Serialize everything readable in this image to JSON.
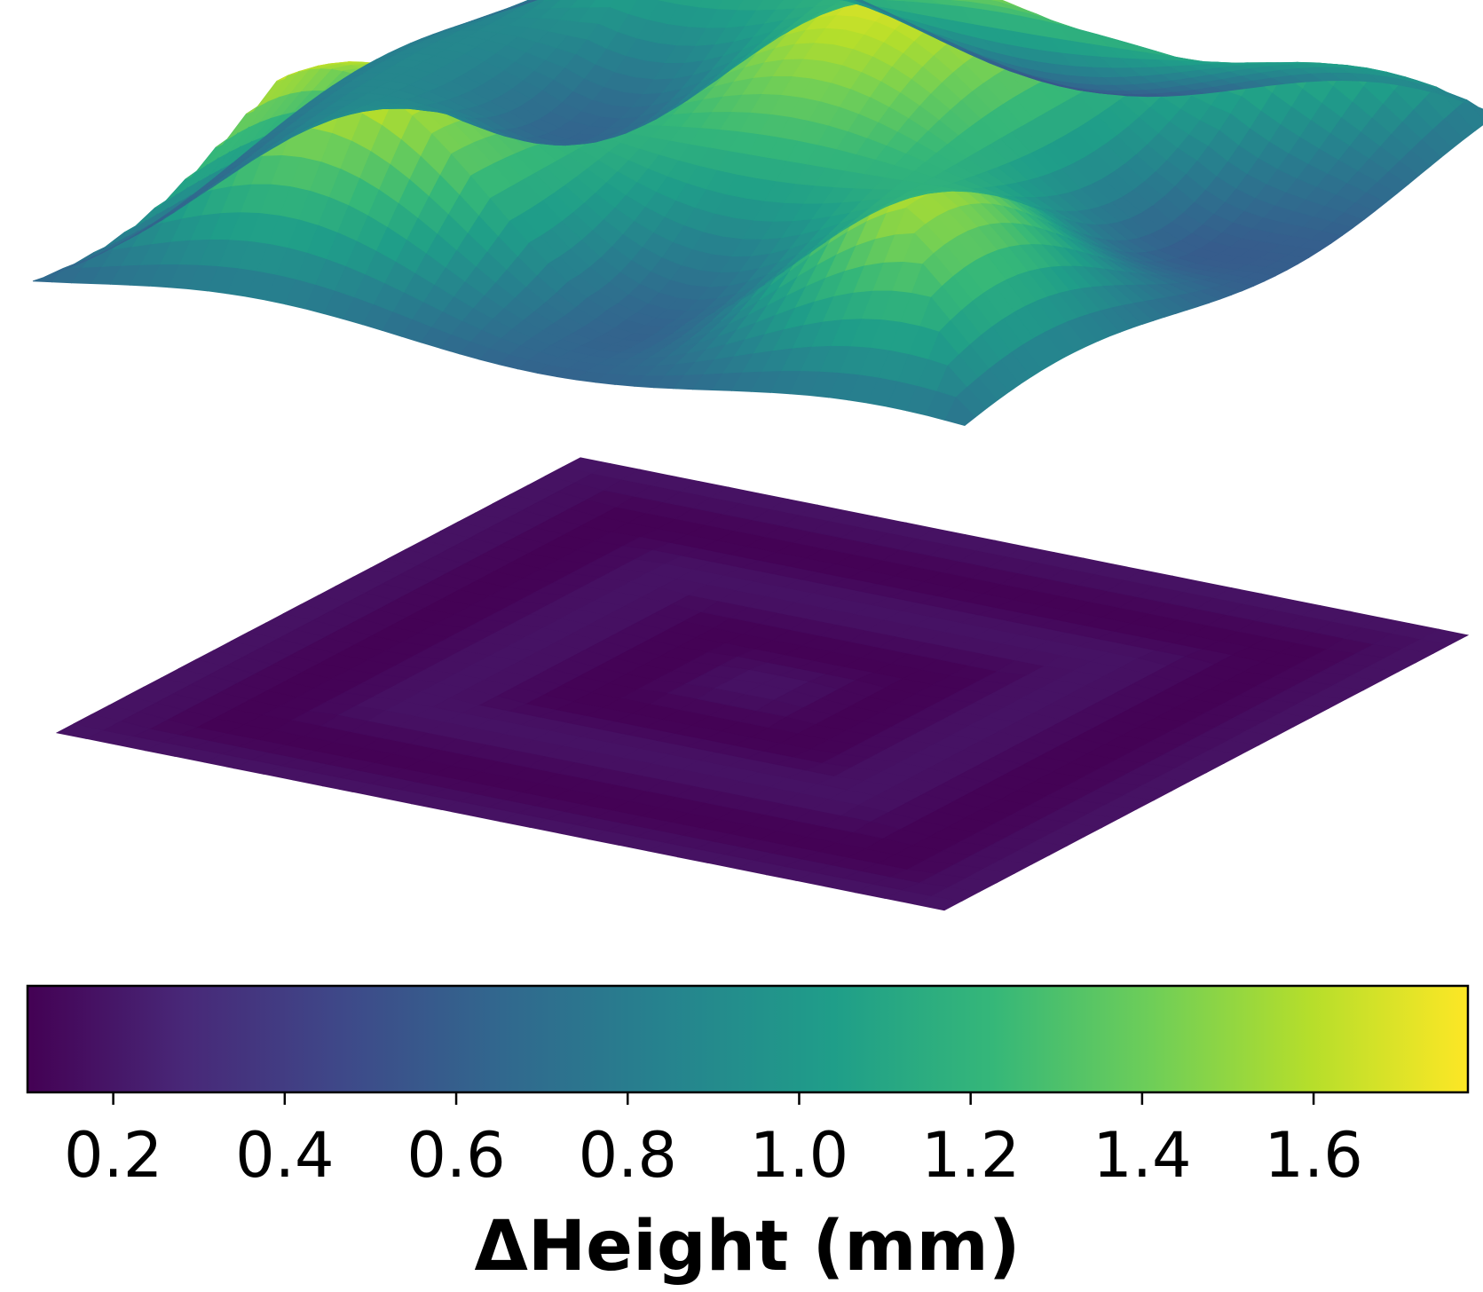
{
  "chart_data": {
    "type": "surface3d",
    "colormap": "viridis",
    "colorbar": {
      "label": "ΔHeight (mm)",
      "range": [
        0.1,
        1.78
      ],
      "ticks": [
        0.2,
        0.4,
        0.6,
        0.8,
        1.0,
        1.2,
        1.4,
        1.6
      ],
      "tick_labels": [
        "0.2",
        "0.4",
        "0.6",
        "0.8",
        "1.0",
        "1.2",
        "1.4",
        "1.6"
      ],
      "orientation": "horizontal",
      "placement": "bottom"
    },
    "surfaces": [
      {
        "position": "upper",
        "value_range": [
          0.45,
          1.7
        ],
        "pattern": "sinusoidal ridges"
      },
      {
        "position": "lower",
        "value_range": [
          0.1,
          0.35
        ],
        "pattern": "nearly flat"
      }
    ]
  },
  "colors": {
    "viridis_stops": [
      "#440154",
      "#482878",
      "#3e4989",
      "#31688e",
      "#26828e",
      "#1f9e89",
      "#35b779",
      "#6ece58",
      "#b5de2b",
      "#fde725"
    ]
  }
}
